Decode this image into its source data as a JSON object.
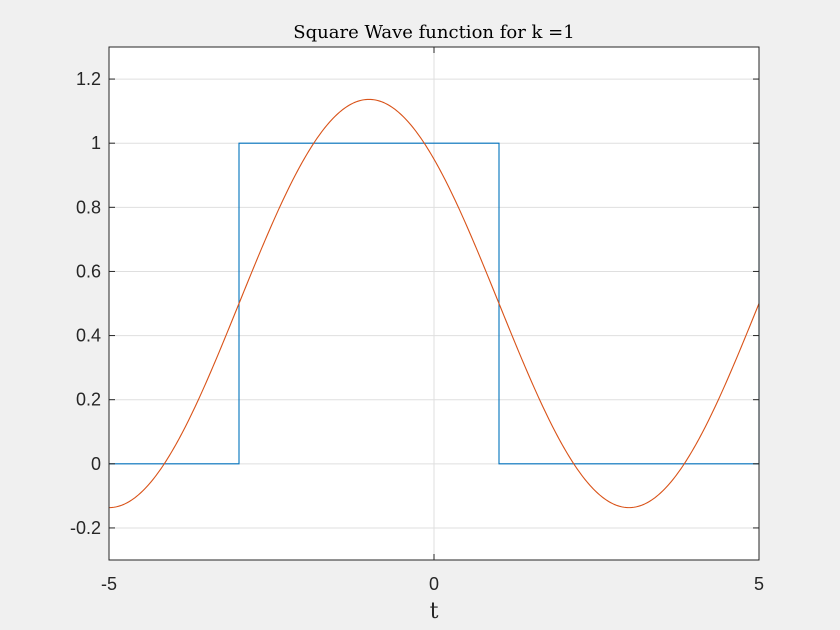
{
  "chart_data": {
    "type": "line",
    "title": "Square Wave function for k =1",
    "xlabel": "t",
    "ylabel": "",
    "xlim": [
      -5,
      5
    ],
    "ylim": [
      -0.3,
      1.3
    ],
    "xticks": [
      -5,
      0,
      5
    ],
    "xtick_labels": [
      "-5",
      "0",
      "5"
    ],
    "yticks": [
      -0.2,
      0,
      0.2,
      0.4,
      0.6,
      0.8,
      1,
      1.2
    ],
    "ytick_labels": [
      "-0.2",
      "0",
      "0.2",
      "0.4",
      "0.6",
      "0.8",
      "1",
      "1.2"
    ],
    "grid": true,
    "series": [
      {
        "kind": "step",
        "color": "#0072BD",
        "x": [
          -5,
          -3,
          -3,
          1,
          1,
          5,
          5
        ],
        "y": [
          0,
          0,
          1,
          1,
          0,
          0,
          1
        ]
      },
      {
        "kind": "function",
        "expression": "0.5 + (2/pi)*cos(pi*(t+1)/4)",
        "color": "#D95319",
        "x": [
          -5,
          -4,
          -3,
          -2,
          -1,
          0,
          1,
          2,
          3,
          4,
          5
        ],
        "y": [
          -0.137,
          0.05,
          0.5,
          0.95,
          1.137,
          0.95,
          0.5,
          0.05,
          -0.137,
          0.05,
          0.5
        ]
      }
    ]
  }
}
